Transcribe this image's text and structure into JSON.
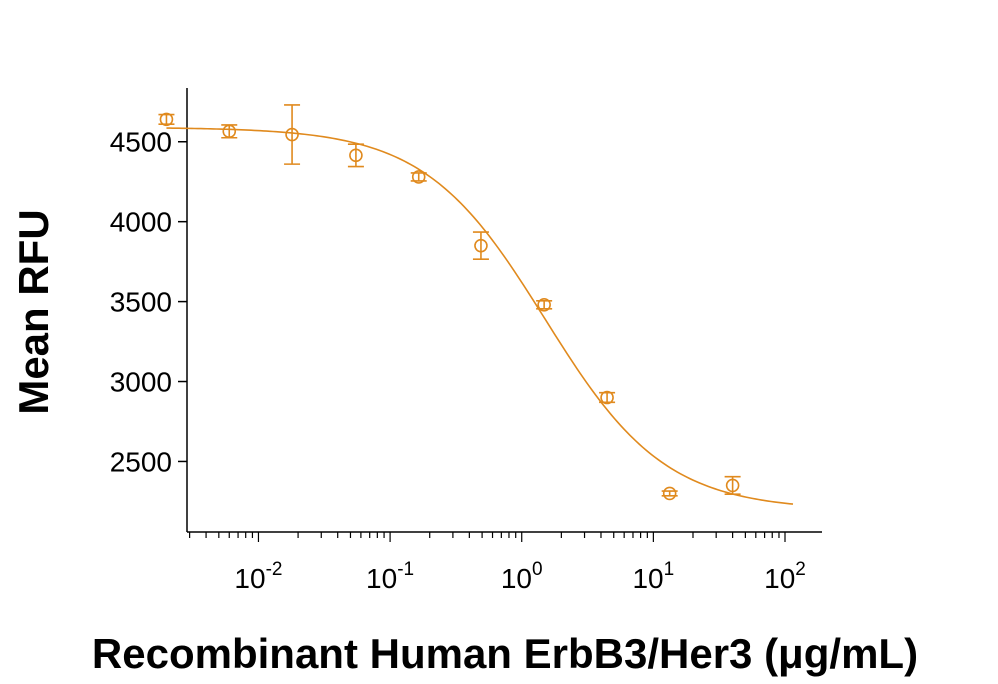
{
  "chart_data": {
    "type": "scatter",
    "title": "",
    "xlabel": "Recombinant Human ErbB3/Her3 (μg/mL)",
    "ylabel": "Mean RFU",
    "x_scale": "log",
    "xlim": [
      0.0015,
      130
    ],
    "ylim": [
      2140,
      4880
    ],
    "x_ticks": [
      {
        "value": 0.01,
        "base": "10",
        "exp": "-2"
      },
      {
        "value": 0.1,
        "base": "10",
        "exp": "-1"
      },
      {
        "value": 1,
        "base": "10",
        "exp": "0"
      },
      {
        "value": 10,
        "base": "10",
        "exp": "1"
      },
      {
        "value": 100,
        "base": "10",
        "exp": "2"
      }
    ],
    "y_ticks": [
      2500,
      3000,
      3500,
      4000,
      4500
    ],
    "grid": false,
    "color": "#E08A1E",
    "series": [
      {
        "name": "",
        "points": [
          {
            "x": 0.002,
            "y": 4640,
            "err": 30
          },
          {
            "x": 0.006,
            "y": 4565,
            "err": 40
          },
          {
            "x": 0.018,
            "y": 4545,
            "err": 185
          },
          {
            "x": 0.055,
            "y": 4415,
            "err": 70
          },
          {
            "x": 0.165,
            "y": 4280,
            "err": 25
          },
          {
            "x": 0.49,
            "y": 3850,
            "err": 85
          },
          {
            "x": 1.48,
            "y": 3480,
            "err": 25
          },
          {
            "x": 4.45,
            "y": 2900,
            "err": 30
          },
          {
            "x": 13.3,
            "y": 2300,
            "err": 15
          },
          {
            "x": 40,
            "y": 2350,
            "err": 55
          }
        ],
        "fit": {
          "model": "4PL",
          "top": 4590,
          "bottom": 2195,
          "ec50": 1.5,
          "hill": 0.95,
          "x_range": [
            0.002,
            115
          ]
        }
      }
    ]
  }
}
